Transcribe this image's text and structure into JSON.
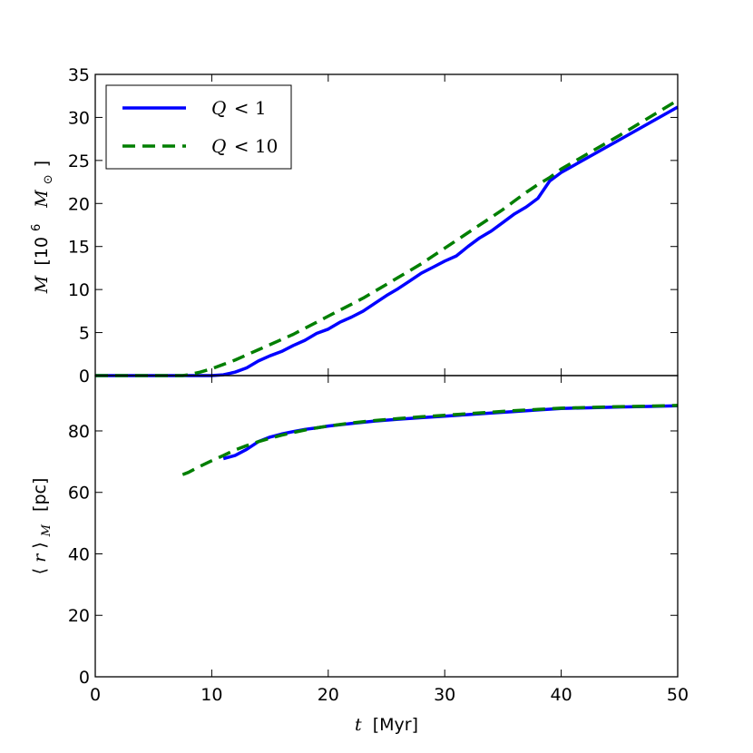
{
  "chart_data": [
    {
      "type": "line",
      "panel": "top",
      "ylabel": {
        "var": "M",
        "unit_pre": "[10",
        "sup": "6",
        "unit_post": "M",
        "sub": "⊙",
        "close": "]"
      },
      "xlim": [
        0,
        50
      ],
      "ylim": [
        0,
        35
      ],
      "yticks": [
        "0",
        "5",
        "10",
        "15",
        "20",
        "25",
        "30",
        "35"
      ],
      "legend": {
        "placement": "top-left",
        "entries": [
          {
            "var": "Q",
            "op": "<",
            "num": "1",
            "color": "#0000ff",
            "style": "solid"
          },
          {
            "var": "Q",
            "op": "<",
            "num": "10",
            "color": "#007f00",
            "style": "dashed"
          }
        ]
      },
      "series": [
        {
          "name": "Q<1",
          "color": "#0000ff",
          "style": "solid",
          "x": [
            0,
            5,
            10,
            11,
            12,
            13,
            14,
            15,
            16,
            17,
            18,
            19,
            20,
            21,
            22,
            23,
            24,
            25,
            26,
            27,
            28,
            29,
            30,
            31,
            32,
            33,
            34,
            35,
            36,
            37,
            38,
            39,
            40,
            45,
            50
          ],
          "y": [
            0,
            0,
            0,
            0.1,
            0.4,
            0.9,
            1.7,
            2.3,
            2.8,
            3.5,
            4.1,
            4.9,
            5.4,
            6.2,
            6.8,
            7.5,
            8.4,
            9.3,
            10.1,
            11.0,
            11.9,
            12.6,
            13.3,
            13.9,
            15.0,
            16.0,
            16.8,
            17.8,
            18.8,
            19.6,
            20.6,
            22.6,
            23.6,
            27.4,
            31.2
          ]
        },
        {
          "name": "Q<10",
          "color": "#007f00",
          "style": "dashed",
          "x": [
            0,
            5,
            7.5,
            8,
            9,
            10,
            11,
            12,
            13,
            14,
            15,
            16,
            17,
            18,
            19,
            20,
            21,
            22,
            23,
            24,
            25,
            26,
            27,
            28,
            29,
            30,
            31,
            32,
            33,
            34,
            35,
            36,
            37,
            38,
            39,
            40,
            45,
            50
          ],
          "y": [
            0,
            0,
            0,
            0.1,
            0.4,
            0.8,
            1.3,
            1.8,
            2.4,
            3.0,
            3.6,
            4.2,
            4.8,
            5.5,
            6.2,
            6.9,
            7.6,
            8.3,
            9.0,
            9.8,
            10.6,
            11.4,
            12.2,
            13.0,
            13.9,
            14.8,
            15.7,
            16.6,
            17.5,
            18.4,
            19.3,
            20.3,
            21.3,
            22.2,
            23.0,
            24.0,
            27.9,
            32.0
          ]
        }
      ]
    },
    {
      "type": "line",
      "panel": "bottom",
      "ylabel": {
        "open": "⟨",
        "var": "r",
        "close": "⟩",
        "sub": "M",
        "unit": "[pc]"
      },
      "xlabel": {
        "var": "t",
        "unit": "[Myr]"
      },
      "xlim": [
        0,
        50
      ],
      "ylim": [
        0,
        98
      ],
      "xticks": [
        "0",
        "10",
        "20",
        "30",
        "40",
        "50"
      ],
      "yticks": [
        "0",
        "20",
        "40",
        "60",
        "80"
      ],
      "series": [
        {
          "name": "Q<1",
          "color": "#0000ff",
          "style": "solid",
          "x": [
            11,
            12,
            13,
            14,
            15,
            16,
            17,
            18,
            19,
            20,
            22,
            24,
            26,
            28,
            30,
            32,
            34,
            36,
            38,
            40,
            42,
            45,
            48,
            50
          ],
          "y": [
            71,
            72,
            74,
            76.5,
            78,
            79,
            79.8,
            80.5,
            81,
            81.6,
            82.4,
            83.2,
            83.8,
            84.3,
            84.8,
            85.3,
            85.8,
            86.3,
            86.8,
            87.3,
            87.5,
            87.8,
            88.0,
            88.2
          ]
        },
        {
          "name": "Q<10",
          "color": "#007f00",
          "style": "dashed",
          "x": [
            7.5,
            8,
            9,
            10,
            11,
            12,
            13,
            14,
            15,
            16,
            17,
            18,
            19,
            20,
            22,
            24,
            26,
            28,
            30,
            32,
            34,
            36,
            38,
            40,
            42,
            45,
            48,
            50
          ],
          "y": [
            65.8,
            66.5,
            68.5,
            70.3,
            72,
            73.8,
            75.2,
            76.5,
            77.6,
            78.6,
            79.5,
            80.3,
            81,
            81.6,
            82.6,
            83.4,
            84.0,
            84.6,
            85.1,
            85.6,
            86.1,
            86.6,
            87.0,
            87.4,
            87.6,
            87.9,
            88.1,
            88.3
          ]
        }
      ]
    }
  ]
}
